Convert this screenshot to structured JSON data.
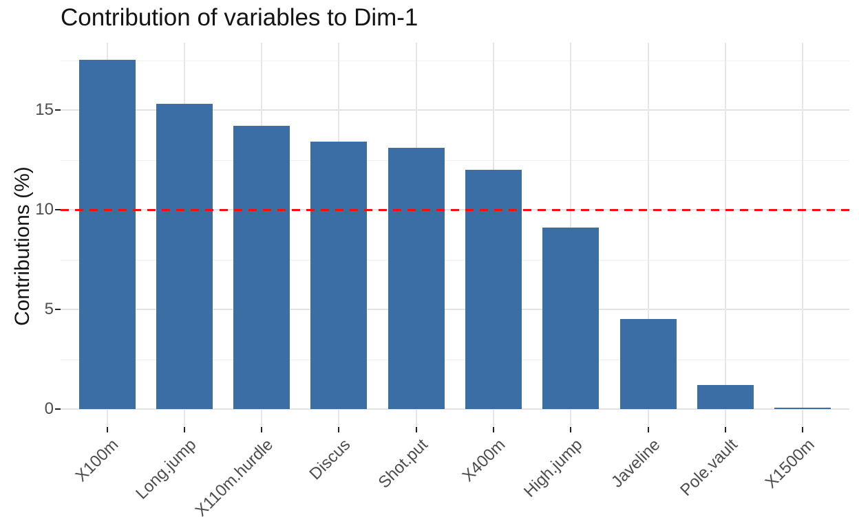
{
  "chart_data": {
    "type": "bar",
    "title": "Contribution of variables to Dim-1",
    "ylabel": "Contributions (%)",
    "xlabel": "",
    "categories": [
      "X100m",
      "Long.jump",
      "X110m.hurdle",
      "Discus",
      "Shot.put",
      "X400m",
      "High.jump",
      "Javeline",
      "Pole.vault",
      "X1500m"
    ],
    "values": [
      17.5,
      15.3,
      14.2,
      13.4,
      13.1,
      12.0,
      9.1,
      4.5,
      1.2,
      0.05
    ],
    "y_ticks": [
      0,
      5,
      10,
      15
    ],
    "y_minor_ticks": [
      2.5,
      7.5,
      12.5,
      17.5
    ],
    "ylim": [
      -0.9,
      18.4
    ],
    "grid": true,
    "legend": "none",
    "bar_color": "#3b6ea4",
    "reference_line": {
      "value": 10,
      "color": "#fb0d0d",
      "linetype": "dashed"
    }
  }
}
